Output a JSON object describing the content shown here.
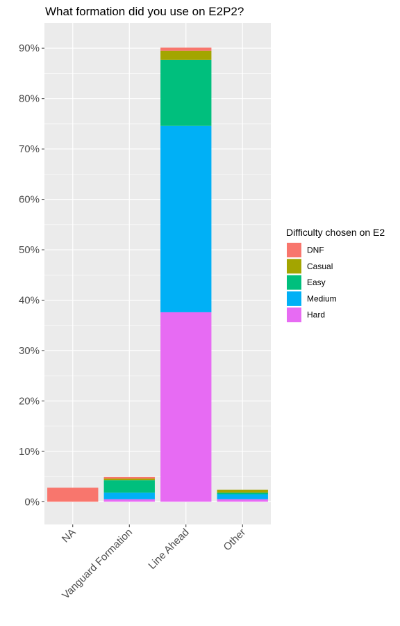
{
  "chart_data": {
    "type": "bar",
    "stacked": true,
    "title": "What formation did you use on E2P2?",
    "xlabel": "",
    "ylabel": "",
    "categories": [
      "NA",
      "Vanguard Formation",
      "Line Ahead",
      "Other"
    ],
    "y_ticks": [
      "0%",
      "10%",
      "20%",
      "30%",
      "40%",
      "50%",
      "60%",
      "70%",
      "80%",
      "90%"
    ],
    "ylim": [
      -0.045,
      0.95
    ],
    "grid": true,
    "legend": {
      "title": "Difficulty chosen on E2",
      "placement": "right"
    },
    "series": [
      {
        "name": "DNF",
        "color": "#F8766D",
        "values": [
          0.028,
          0.003,
          0.006,
          0.0
        ]
      },
      {
        "name": "Casual",
        "color": "#A3A500",
        "values": [
          0.0,
          0.003,
          0.018,
          0.006
        ]
      },
      {
        "name": "Easy",
        "color": "#00BF7D",
        "values": [
          0.0,
          0.025,
          0.131,
          0.003
        ]
      },
      {
        "name": "Medium",
        "color": "#00B0F6",
        "values": [
          0.0,
          0.013,
          0.37,
          0.01
        ]
      },
      {
        "name": "Hard",
        "color": "#E76BF3",
        "values": [
          0.0,
          0.005,
          0.376,
          0.005
        ]
      }
    ],
    "colors": {
      "panel": "#EBEBEB",
      "grid": "#FFFFFF",
      "tick_text": "#4D4D4D"
    }
  }
}
